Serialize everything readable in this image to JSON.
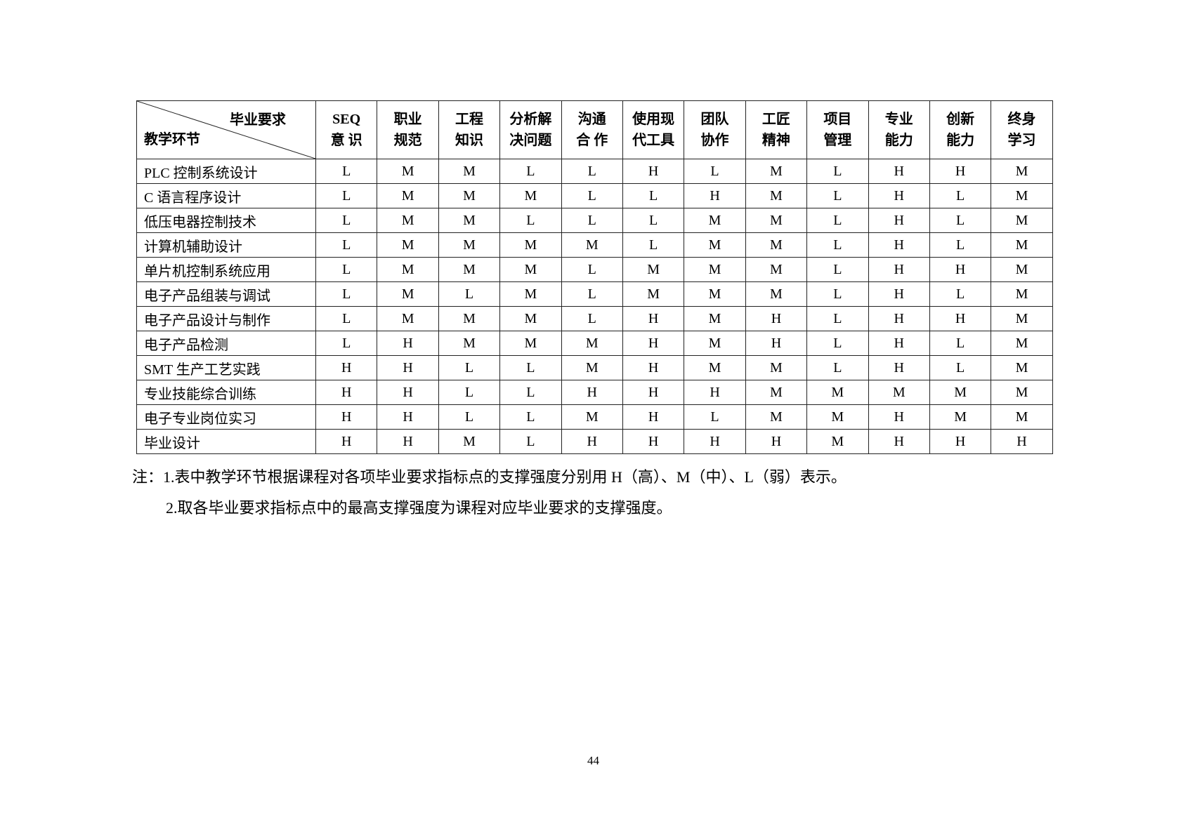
{
  "table": {
    "corner_top": "毕业要求",
    "corner_bottom": "教学环节",
    "columns": [
      [
        "SEQ",
        "意 识"
      ],
      [
        "职业",
        "规范"
      ],
      [
        "工程",
        "知识"
      ],
      [
        "分析解",
        "决问题"
      ],
      [
        "沟通",
        "合 作"
      ],
      [
        "使用现",
        "代工具"
      ],
      [
        "团队",
        "协作"
      ],
      [
        "工匠",
        "精神"
      ],
      [
        "项目",
        "管理"
      ],
      [
        "专业",
        "能力"
      ],
      [
        "创新",
        "能力"
      ],
      [
        "终身",
        "学习"
      ]
    ],
    "rows": [
      {
        "name": "PLC 控制系统设计",
        "values": [
          "L",
          "M",
          "M",
          "L",
          "L",
          "H",
          "L",
          "M",
          "L",
          "H",
          "H",
          "M"
        ]
      },
      {
        "name": "C 语言程序设计",
        "values": [
          "L",
          "M",
          "M",
          "M",
          "L",
          "L",
          "H",
          "M",
          "L",
          "H",
          "L",
          "M"
        ]
      },
      {
        "name": "低压电器控制技术",
        "values": [
          "L",
          "M",
          "M",
          "L",
          "L",
          "L",
          "M",
          "M",
          "L",
          "H",
          "L",
          "M"
        ]
      },
      {
        "name": "计算机辅助设计",
        "values": [
          "L",
          "M",
          "M",
          "M",
          "M",
          "L",
          "M",
          "M",
          "L",
          "H",
          "L",
          "M"
        ]
      },
      {
        "name": "单片机控制系统应用",
        "values": [
          "L",
          "M",
          "M",
          "M",
          "L",
          "M",
          "M",
          "M",
          "L",
          "H",
          "H",
          "M"
        ]
      },
      {
        "name": "电子产品组装与调试",
        "values": [
          "L",
          "M",
          "L",
          "M",
          "L",
          "M",
          "M",
          "M",
          "L",
          "H",
          "L",
          "M"
        ]
      },
      {
        "name": "电子产品设计与制作",
        "values": [
          "L",
          "M",
          "M",
          "M",
          "L",
          "H",
          "M",
          "H",
          "L",
          "H",
          "H",
          "M"
        ]
      },
      {
        "name": "电子产品检测",
        "values": [
          "L",
          "H",
          "M",
          "M",
          "M",
          "H",
          "M",
          "H",
          "L",
          "H",
          "L",
          "M"
        ]
      },
      {
        "name": "SMT 生产工艺实践",
        "values": [
          "H",
          "H",
          "L",
          "L",
          "M",
          "H",
          "M",
          "M",
          "L",
          "H",
          "L",
          "M"
        ]
      },
      {
        "name": "专业技能综合训练",
        "values": [
          "H",
          "H",
          "L",
          "L",
          "H",
          "H",
          "H",
          "M",
          "M",
          "M",
          "M",
          "M"
        ]
      },
      {
        "name": "电子专业岗位实习",
        "values": [
          "H",
          "H",
          "L",
          "L",
          "M",
          "H",
          "L",
          "M",
          "M",
          "H",
          "M",
          "M"
        ]
      },
      {
        "name": "毕业设计",
        "values": [
          "H",
          "H",
          "M",
          "L",
          "H",
          "H",
          "H",
          "H",
          "M",
          "H",
          "H",
          "H"
        ]
      }
    ]
  },
  "notes": [
    "注：1.表中教学环节根据课程对各项毕业要求指标点的支撑强度分别用 H（高）、M（中）、L（弱）表示。",
    "2.取各毕业要求指标点中的最高支撑强度为课程对应毕业要求的支撑强度。"
  ],
  "page_number": "44"
}
